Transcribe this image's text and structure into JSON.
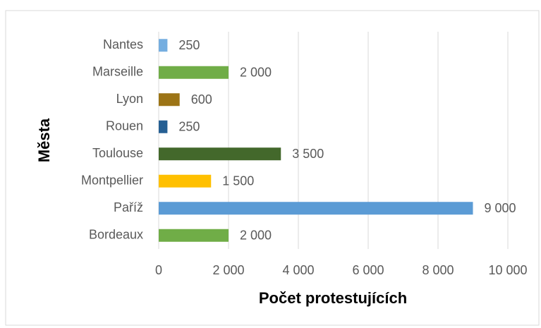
{
  "chart_data": {
    "type": "hbar",
    "x_label": "Počet protestujících",
    "y_label": "Města",
    "categories": [
      "Nantes",
      "Marseille",
      "Lyon",
      "Rouen",
      "Toulouse",
      "Montpellier",
      "Paříž",
      "Bordeaux"
    ],
    "values": [
      250,
      2000,
      600,
      250,
      3500,
      1500,
      9000,
      2000
    ],
    "value_labels": [
      "250",
      "2 000",
      "600",
      "250",
      "3 500",
      "1 500",
      "9 000",
      "2 000"
    ],
    "colors": [
      "#75aee0",
      "#70ad47",
      "#9c7416",
      "#265f93",
      "#43682b",
      "#ffc000",
      "#5b9bd5",
      "#70ad47"
    ],
    "xlim": [
      0,
      10000
    ],
    "xticks": [
      0,
      {
        "value": 2000,
        "label": "2 000"
      },
      {
        "value": 4000,
        "label": "4 000"
      },
      {
        "value": 6000,
        "label": "6 000"
      },
      {
        "value": 8000,
        "label": "8 000"
      },
      {
        "value": 10000,
        "label": "10 000"
      }
    ],
    "grid": true
  }
}
